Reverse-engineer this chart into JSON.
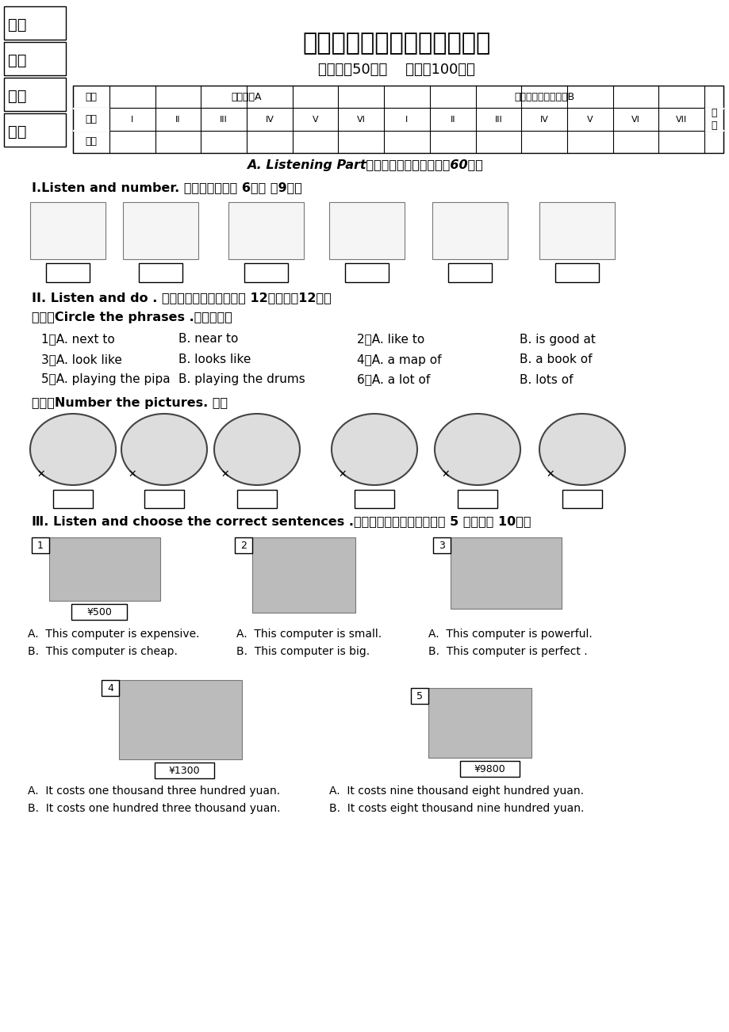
{
  "title": "四年级英语下学期期末练习卷",
  "subtitle": "（时间：50分钟    总分：100分）",
  "bg_color": "#ffffff",
  "left_labels": [
    "学校",
    "班级",
    "姓名",
    "学号"
  ],
  "section_a_title": "A. Listening Part听力部分（共六大题，计60分）",
  "section1_title": "Ⅰ.Listen and number. 听音标序号（共 6小题 计9分）",
  "section2_title": "II. Listen and do . 听指令，完成各题。（共 12小题，计12分）",
  "section2_sub1": "（一）Circle the phrases .圈出短语。",
  "circle_items": [
    [
      "1、A. next to",
      "B. near to",
      "2、A. like to",
      "B. is good at"
    ],
    [
      "3、A. look like",
      "B. looks like",
      "4、A. a map of",
      "B. a book of"
    ],
    [
      "5、A. playing the pipa",
      "B. playing the drums",
      "6、A. a lot of",
      "B. lots of"
    ]
  ],
  "section2_sub2": "（二）Number the pictures. 标号",
  "section3_title": "Ⅲ. Listen and choose the correct sentences .听音选择恰当的句子。（共 5 小题，计 10分）",
  "item1_label": "1",
  "item1_price": "¥500",
  "item1_a": "A.  This computer is expensive.",
  "item1_b": "B.  This computer is cheap.",
  "item2_label": "2",
  "item2_a": "A.  This computer is small.",
  "item2_b": "B.  This computer is big.",
  "item3_label": "3",
  "item3_a": "A.  This computer is powerful.",
  "item3_b": "B.  This computer is perfect .",
  "item4_label": "4",
  "item4_price": "¥1300",
  "item4_a": "A.  It costs one thousand three hundred yuan.",
  "item4_b": "B.  It costs one hundred three thousand yuan.",
  "item5_label": "5",
  "item5_price": "¥9800",
  "item5_a": "A.  It costs nine thousand eight hundred yuan.",
  "item5_b": "B.  It costs eight thousand nine hundred yuan."
}
